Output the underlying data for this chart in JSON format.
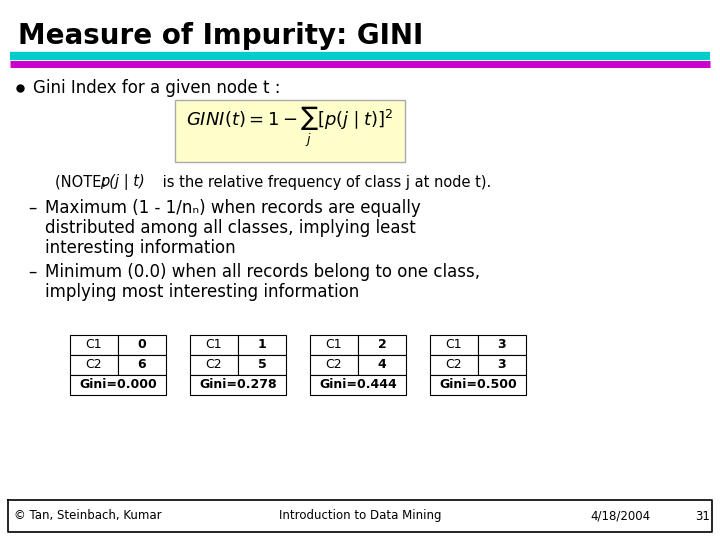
{
  "title": "Measure of Impurity: GINI",
  "title_fontsize": 20,
  "title_color": "#000000",
  "bg_color": "#ffffff",
  "line1_color": "#00cccc",
  "line2_color": "#cc00cc",
  "bullet_text": "Gini Index for a given node t :",
  "formula_bg": "#ffffcc",
  "note_pre": "(NOTE: ",
  "note_italic": "p(j | t)",
  "note_post": " is the relative frequency of class j at node t).",
  "bullet1_lines": [
    "Maximum (1 - 1/nₙ) when records are equally",
    "distributed among all classes, implying least",
    "interesting information"
  ],
  "bullet2_lines": [
    "Minimum (0.0) when all records belong to one class,",
    "implying most interesting information"
  ],
  "tables": [
    {
      "c1": "0",
      "c2": "6",
      "gini": "Gini=0.000"
    },
    {
      "c1": "1",
      "c2": "5",
      "gini": "Gini=0.278"
    },
    {
      "c1": "2",
      "c2": "4",
      "gini": "Gini=0.444"
    },
    {
      "c1": "3",
      "c2": "3",
      "gini": "Gini=0.500"
    }
  ],
  "footer_left": "© Tan, Steinbach, Kumar",
  "footer_center": "Introduction to Data Mining",
  "footer_right": "4/18/2004",
  "footer_page": "31",
  "text_fontsize": 12,
  "note_fontsize": 10.5,
  "table_fontsize": 9
}
